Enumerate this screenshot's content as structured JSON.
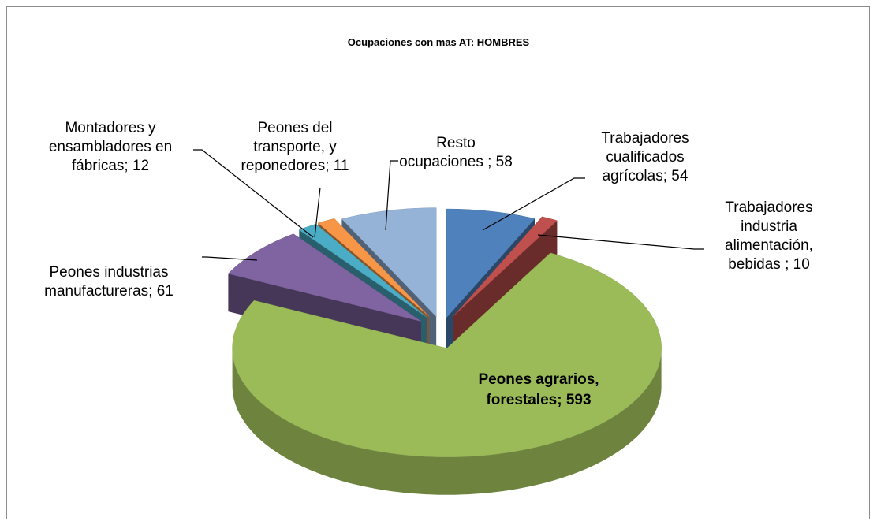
{
  "chart_data": {
    "type": "pie",
    "title": "Ocupaciones con mas AT: HOMBRES",
    "values": [
      54,
      10,
      593,
      61,
      12,
      11,
      58
    ],
    "value_labels": [
      "Trabajadores cualificados agrícolas; 54",
      "Trabajadores industria alimentación, bebidas ; 10",
      "Peones agrarios, forestales; 593",
      "Peones industrias manufactureras; 61",
      "Montadores y ensambladores en fábricas; 12",
      "Peones del transporte, y reponedores; 11",
      "Resto ocupaciones ; 58"
    ],
    "colors": [
      "#4f81bd",
      "#c0504d",
      "#9bbb59",
      "#8064a2",
      "#4bacc6",
      "#f79646",
      "#95b3d7"
    ],
    "three_d": true,
    "exploded": true
  }
}
